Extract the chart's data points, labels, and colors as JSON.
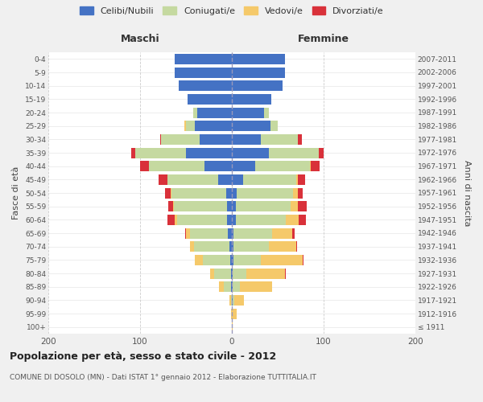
{
  "age_groups": [
    "100+",
    "95-99",
    "90-94",
    "85-89",
    "80-84",
    "75-79",
    "70-74",
    "65-69",
    "60-64",
    "55-59",
    "50-54",
    "45-49",
    "40-44",
    "35-39",
    "30-34",
    "25-29",
    "20-24",
    "15-19",
    "10-14",
    "5-9",
    "0-4"
  ],
  "birth_years": [
    "≤ 1911",
    "1912-1916",
    "1917-1921",
    "1922-1926",
    "1927-1931",
    "1932-1936",
    "1937-1941",
    "1942-1946",
    "1947-1951",
    "1952-1956",
    "1957-1961",
    "1962-1966",
    "1967-1971",
    "1972-1976",
    "1977-1981",
    "1982-1986",
    "1987-1991",
    "1992-1996",
    "1997-2001",
    "2002-2006",
    "2007-2011"
  ],
  "colors": {
    "celibi": "#4472C4",
    "coniugati": "#C5D9A0",
    "vedovi": "#F5C96A",
    "divorziati": "#D9313A"
  },
  "maschi": {
    "celibi": [
      0,
      0,
      0,
      1,
      1,
      2,
      3,
      4,
      5,
      5,
      6,
      15,
      30,
      50,
      35,
      40,
      38,
      48,
      58,
      62,
      62
    ],
    "coniugati": [
      0,
      0,
      1,
      8,
      18,
      30,
      38,
      42,
      55,
      58,
      60,
      55,
      60,
      55,
      42,
      10,
      4,
      0,
      0,
      0,
      0
    ],
    "vedovi": [
      0,
      1,
      2,
      5,
      5,
      8,
      5,
      4,
      2,
      1,
      1,
      0,
      0,
      0,
      0,
      2,
      0,
      0,
      0,
      0,
      0
    ],
    "divorziati": [
      0,
      0,
      0,
      0,
      0,
      0,
      0,
      1,
      8,
      5,
      6,
      10,
      10,
      5,
      1,
      0,
      0,
      0,
      0,
      0,
      0
    ]
  },
  "femmine": {
    "celibi": [
      0,
      0,
      1,
      1,
      1,
      2,
      2,
      2,
      4,
      4,
      5,
      12,
      25,
      40,
      32,
      42,
      35,
      43,
      55,
      58,
      58
    ],
    "coniugati": [
      0,
      0,
      2,
      8,
      15,
      30,
      38,
      42,
      55,
      60,
      62,
      58,
      60,
      55,
      40,
      8,
      5,
      0,
      0,
      0,
      0
    ],
    "vedovi": [
      1,
      5,
      10,
      35,
      42,
      45,
      30,
      22,
      14,
      8,
      5,
      2,
      1,
      0,
      0,
      0,
      0,
      0,
      0,
      0,
      0
    ],
    "divorziati": [
      0,
      0,
      0,
      0,
      1,
      1,
      1,
      2,
      8,
      10,
      5,
      8,
      10,
      5,
      4,
      0,
      0,
      0,
      0,
      0,
      0
    ]
  },
  "xlim": 200,
  "title_main": "Popolazione per età, sesso e stato civile - 2012",
  "title_sub": "COMUNE DI DOSOLO (MN) - Dati ISTAT 1° gennaio 2012 - Elaborazione TUTTITALIA.IT",
  "ylabel": "Fasce di età",
  "ylabel_right": "Anni di nascita",
  "label_maschi": "Maschi",
  "label_femmine": "Femmine",
  "legend_labels": [
    "Celibi/Nubili",
    "Coniugati/e",
    "Vedovi/e",
    "Divorziati/e"
  ],
  "bg_color": "#f0f0f0",
  "plot_bg_color": "#ffffff"
}
